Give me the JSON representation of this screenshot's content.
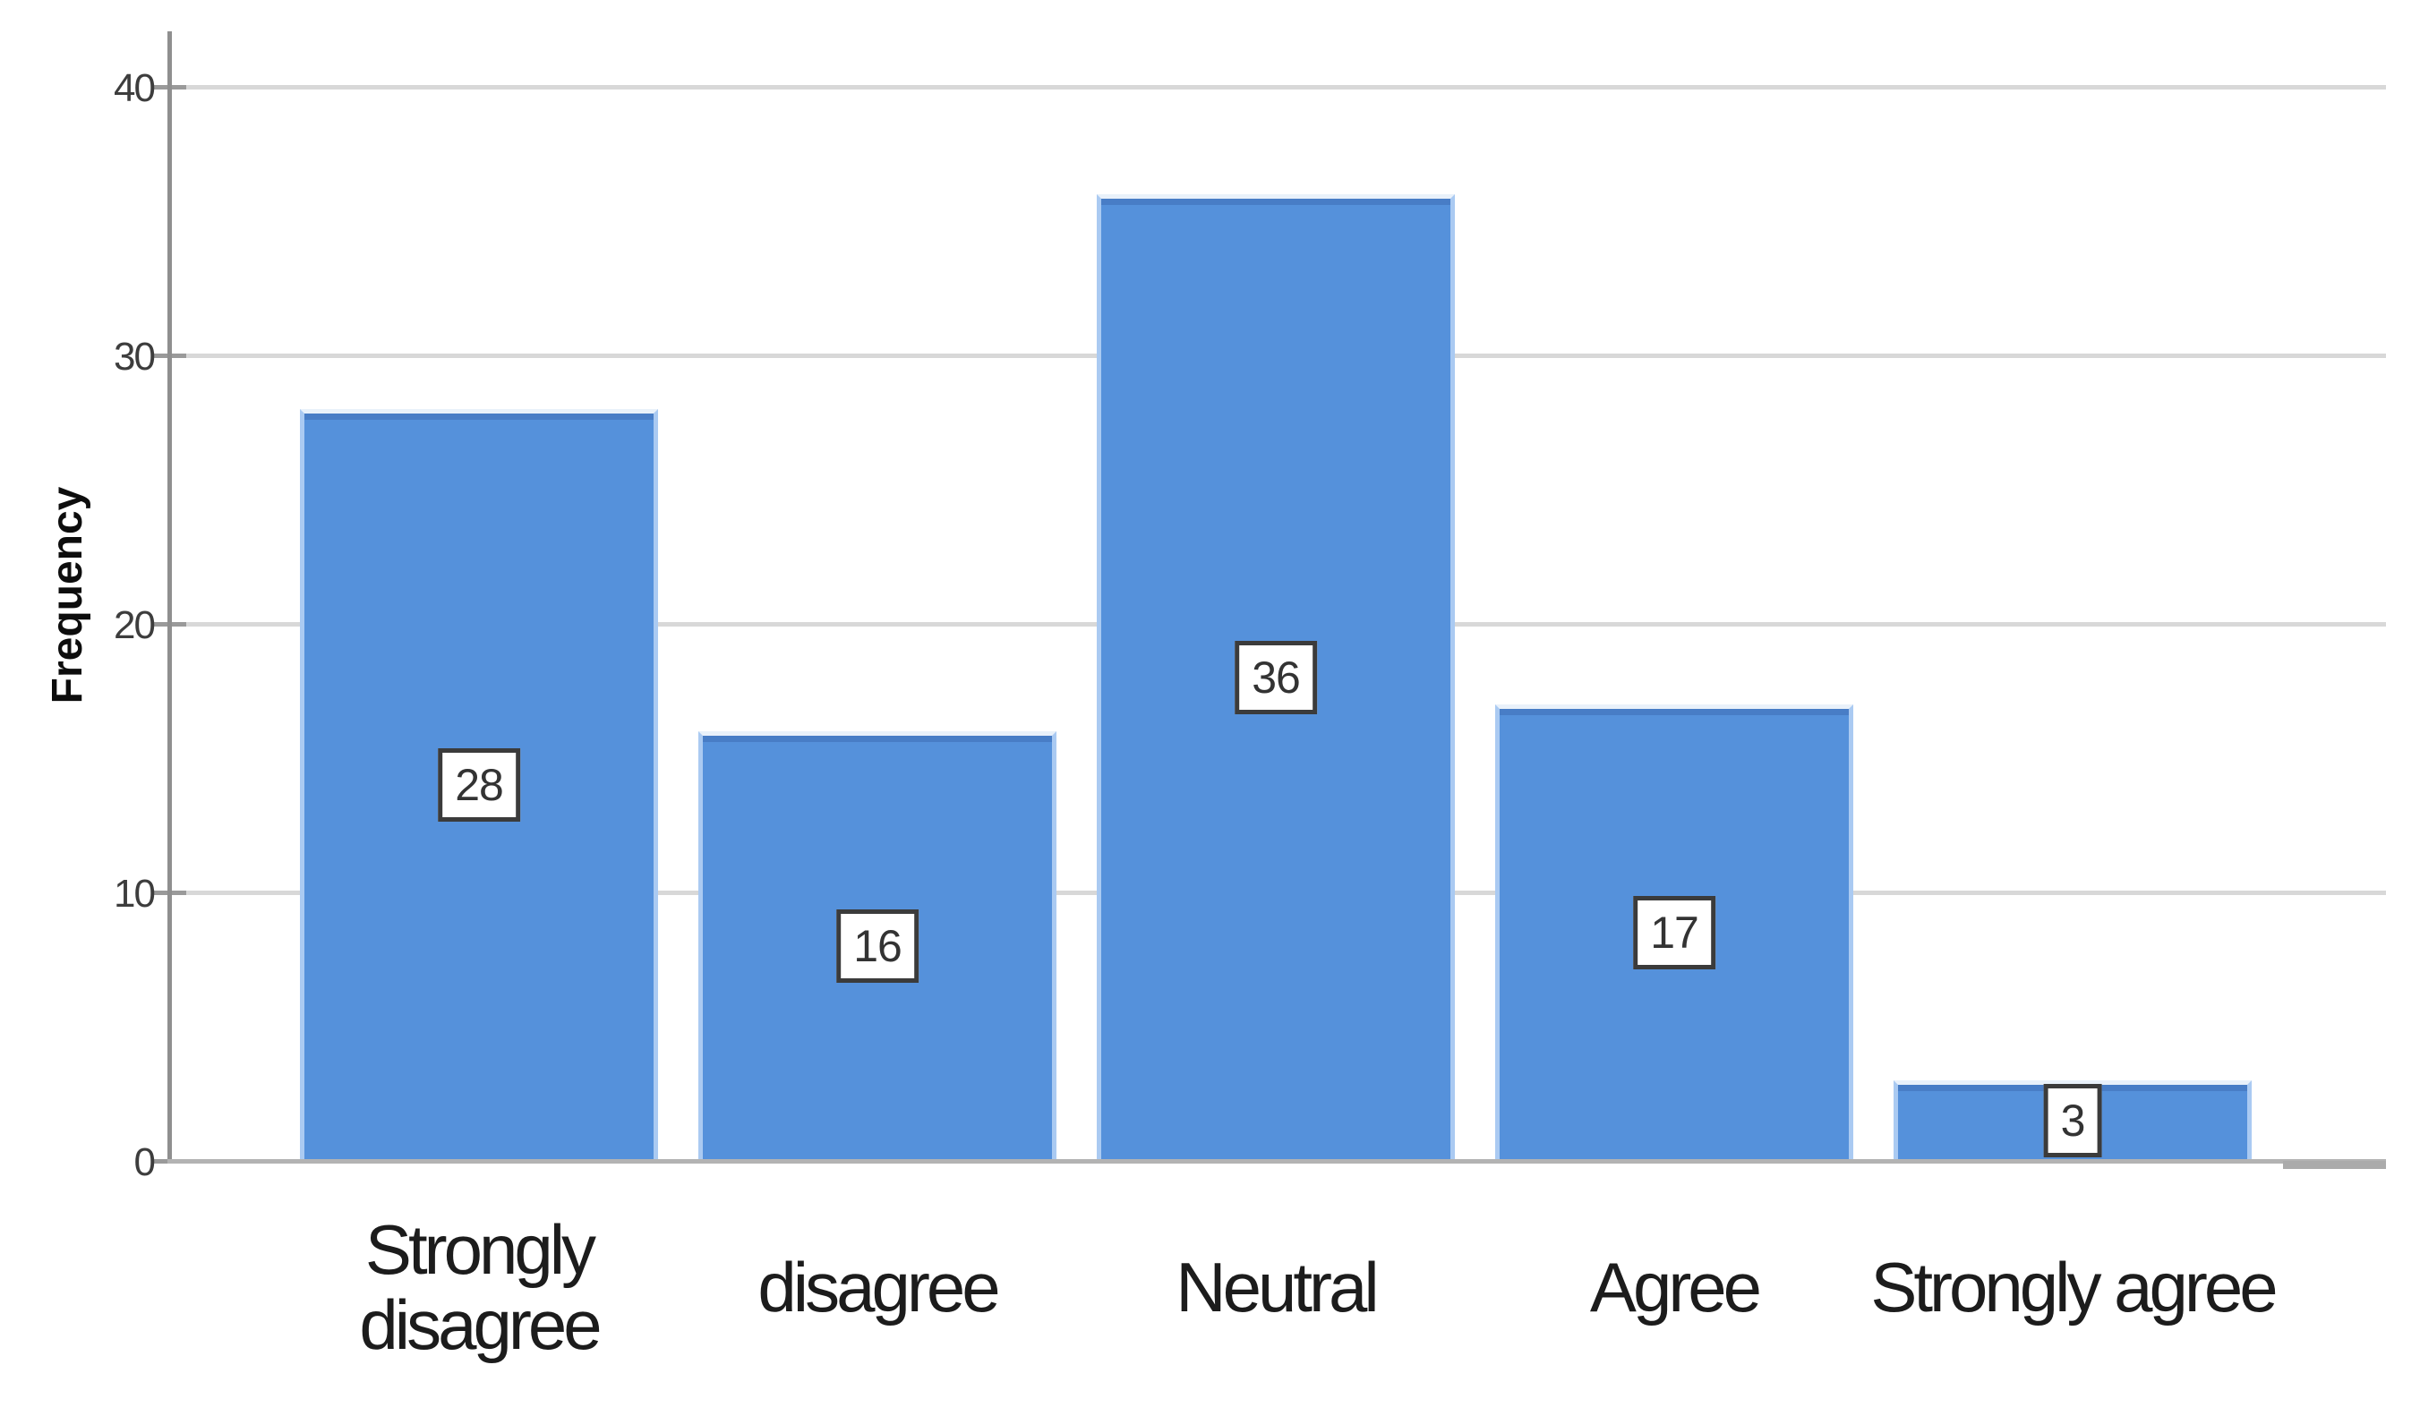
{
  "chart_data": {
    "type": "bar",
    "title": "",
    "xlabel": "",
    "ylabel": "Frequency",
    "categories": [
      "Strongly disagree",
      "disagree",
      "Neutral",
      "Agree",
      "Strongly agree"
    ],
    "values": [
      28,
      16,
      36,
      17,
      3
    ],
    "data_labels": [
      "28",
      "16",
      "36",
      "17",
      "3"
    ],
    "yticks": [
      "0",
      "10",
      "20",
      "30",
      "40"
    ],
    "ylim": [
      0,
      42
    ],
    "grid": true,
    "legend_position": "none",
    "colors": {
      "bar_fill": "#5591db",
      "bar_edge": "#aacaf2",
      "gridline": "#d8d8d8",
      "axis": "#8f8f8f",
      "value_box_border": "#3b3b3b",
      "value_box_bg": "#ffffff",
      "tick_text": "#3d3d3d",
      "category_text": "#1c1c1c"
    }
  }
}
